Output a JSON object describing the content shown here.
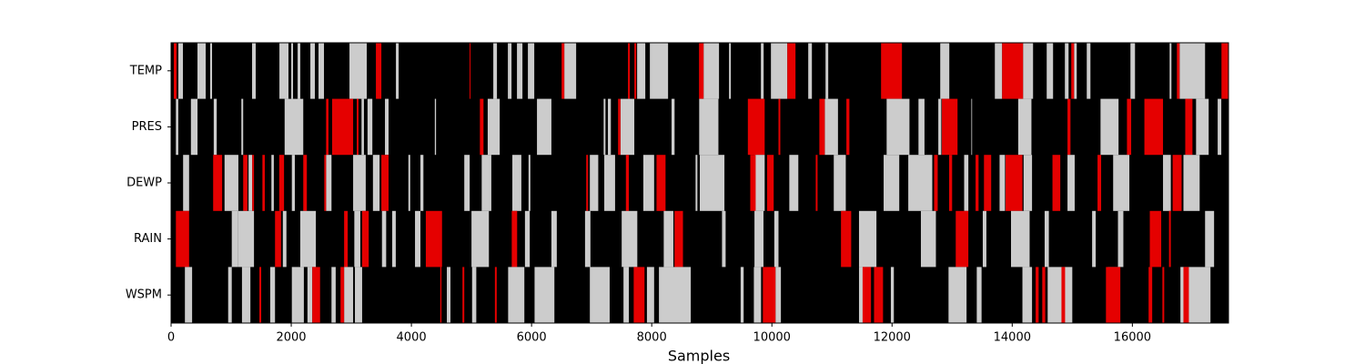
{
  "chart_data": {
    "type": "strip",
    "xlabel": "Samples",
    "xlim": [
      0,
      17600
    ],
    "xticks": [
      0,
      2000,
      4000,
      6000,
      8000,
      10000,
      12000,
      14000,
      16000
    ],
    "background": "#000000",
    "series": [
      {
        "name": "TEMP",
        "layers": [
          {
            "color": "#cccccc",
            "spans": [
              [
                121,
                197
              ],
              [
                439,
                576
              ],
              [
                651,
                682
              ],
              [
                1348,
                1409
              ],
              [
                1803,
                1954
              ],
              [
                2000,
                2030
              ],
              [
                2106,
                2151
              ],
              [
                2318,
                2394
              ],
              [
                2454,
                2545
              ],
              [
                2969,
                3257
              ],
              [
                3742,
                3788
              ],
              [
                5363,
                5424
              ],
              [
                5606,
                5666
              ],
              [
                5757,
                5848
              ],
              [
                5939,
                6045
              ],
              [
                6545,
                6742
              ],
              [
                7757,
                7893
              ],
              [
                7969,
                8272
              ],
              [
                8863,
                9120
              ],
              [
                9287,
                9317
              ],
              [
                9817,
                9863
              ],
              [
                9984,
                10257
              ],
              [
                10605,
                10666
              ],
              [
                10893,
                10938
              ],
              [
                12802,
                12953
              ],
              [
                13711,
                13832
              ],
              [
                14180,
                14347
              ],
              [
                14574,
                14680
              ],
              [
                14877,
                14938
              ],
              [
                15029,
                15074
              ],
              [
                15241,
                15302
              ],
              [
                15968,
                16044
              ],
              [
                16620,
                16650
              ],
              [
                16786,
                17210
              ]
            ]
          },
          {
            "color": "#e50000",
            "spans": [
              [
                45,
                91
              ],
              [
                3409,
                3500
              ],
              [
                4969,
                4984
              ],
              [
                6500,
                6545
              ],
              [
                7605,
                7636
              ],
              [
                7711,
                7742
              ],
              [
                8787,
                8863
              ],
              [
                10257,
                10393
              ],
              [
                11817,
                12165
              ],
              [
                13832,
                14180
              ],
              [
                14983,
                15029
              ],
              [
                16741,
                16786
              ],
              [
                17483,
                17600
              ]
            ]
          }
        ]
      },
      {
        "name": "PRES",
        "layers": [
          {
            "color": "#cccccc",
            "spans": [
              [
                80,
                120
              ],
              [
                330,
                440
              ],
              [
                710,
                760
              ],
              [
                1170,
                1200
              ],
              [
                1890,
                2200
              ],
              [
                3170,
                3210
              ],
              [
                3270,
                3350
              ],
              [
                3560,
                3620
              ],
              [
                4390,
                4410
              ],
              [
                5270,
                5470
              ],
              [
                6090,
                6330
              ],
              [
                7200,
                7230
              ],
              [
                7270,
                7320
              ],
              [
                7480,
                7710
              ],
              [
                8330,
                8380
              ],
              [
                8790,
                9110
              ],
              [
                10880,
                11100
              ],
              [
                11910,
                12290
              ],
              [
                12440,
                12540
              ],
              [
                12770,
                12820
              ],
              [
                13320,
                13330
              ],
              [
                14100,
                14320
              ],
              [
                15470,
                15770
              ],
              [
                17060,
                17270
              ],
              [
                17420,
                17480
              ]
            ]
          },
          {
            "color": "#e50000",
            "spans": [
              [
                2580,
                2620
              ],
              [
                2680,
                3030
              ],
              [
                3090,
                3120
              ],
              [
                5140,
                5200
              ],
              [
                7440,
                7480
              ],
              [
                9600,
                9880
              ],
              [
                10110,
                10140
              ],
              [
                10790,
                10880
              ],
              [
                11240,
                11290
              ],
              [
                12830,
                13090
              ],
              [
                14920,
                14970
              ],
              [
                15910,
                15980
              ],
              [
                16200,
                16510
              ],
              [
                16880,
                17000
              ]
            ]
          }
        ]
      },
      {
        "name": "DEWP",
        "layers": [
          {
            "color": "#cccccc",
            "spans": [
              [
                200,
                300
              ],
              [
                890,
                1120
              ],
              [
                1290,
                1350
              ],
              [
                1670,
                1710
              ],
              [
                2010,
                2060
              ],
              [
                2580,
                2670
              ],
              [
                3030,
                3240
              ],
              [
                3360,
                3470
              ],
              [
                3950,
                3980
              ],
              [
                4150,
                4200
              ],
              [
                4880,
                4970
              ],
              [
                5170,
                5330
              ],
              [
                5680,
                5830
              ],
              [
                5950,
                5980
              ],
              [
                6970,
                7110
              ],
              [
                7210,
                7390
              ],
              [
                7860,
                8040
              ],
              [
                8730,
                8760
              ],
              [
                8800,
                9210
              ],
              [
                9710,
                9880
              ],
              [
                10290,
                10440
              ],
              [
                11030,
                11230
              ],
              [
                11860,
                12120
              ],
              [
                12270,
                12670
              ],
              [
                13200,
                13270
              ],
              [
                13790,
                13880
              ],
              [
                14190,
                14330
              ],
              [
                14920,
                15040
              ],
              [
                15680,
                15950
              ],
              [
                16510,
                16640
              ],
              [
                16850,
                17120
              ]
            ]
          },
          {
            "color": "#e50000",
            "spans": [
              [
                700,
                850
              ],
              [
                1200,
                1270
              ],
              [
                1350,
                1380
              ],
              [
                1520,
                1560
              ],
              [
                1800,
                1880
              ],
              [
                2200,
                2260
              ],
              [
                2550,
                2580
              ],
              [
                3500,
                3620
              ],
              [
                6910,
                6940
              ],
              [
                7570,
                7620
              ],
              [
                8080,
                8230
              ],
              [
                9640,
                9730
              ],
              [
                9920,
                10030
              ],
              [
                10730,
                10760
              ],
              [
                12700,
                12760
              ],
              [
                12950,
                13000
              ],
              [
                13390,
                13440
              ],
              [
                13530,
                13650
              ],
              [
                13890,
                14170
              ],
              [
                14670,
                14800
              ],
              [
                15420,
                15480
              ],
              [
                16670,
                16820
              ]
            ]
          }
        ]
      },
      {
        "name": "RAIN",
        "layers": [
          {
            "color": "#cccccc",
            "spans": [
              [
                1010,
                1110
              ],
              [
                1110,
                1380
              ],
              [
                1860,
                1920
              ],
              [
                2150,
                2410
              ],
              [
                3050,
                3150
              ],
              [
                3510,
                3580
              ],
              [
                3680,
                3740
              ],
              [
                4060,
                4150
              ],
              [
                5000,
                5290
              ],
              [
                5890,
                5970
              ],
              [
                6330,
                6420
              ],
              [
                6890,
                6980
              ],
              [
                7500,
                7760
              ],
              [
                8200,
                8360
              ],
              [
                9170,
                9230
              ],
              [
                9710,
                9860
              ],
              [
                10040,
                10110
              ],
              [
                11450,
                11740
              ],
              [
                12480,
                12730
              ],
              [
                13510,
                13570
              ],
              [
                13980,
                14290
              ],
              [
                14540,
                14610
              ],
              [
                15330,
                15390
              ],
              [
                15760,
                15850
              ],
              [
                17210,
                17360
              ]
            ]
          },
          {
            "color": "#e50000",
            "spans": [
              [
                80,
                300
              ],
              [
                1730,
                1830
              ],
              [
                2880,
                2940
              ],
              [
                3180,
                3290
              ],
              [
                4240,
                4510
              ],
              [
                5670,
                5760
              ],
              [
                8380,
                8520
              ],
              [
                11150,
                11320
              ],
              [
                13060,
                13270
              ],
              [
                16290,
                16480
              ],
              [
                16610,
                16640
              ]
            ]
          }
        ]
      },
      {
        "name": "WSPM",
        "layers": [
          {
            "color": "#cccccc",
            "spans": [
              [
                230,
                350
              ],
              [
                950,
                1010
              ],
              [
                1180,
                1320
              ],
              [
                1650,
                1730
              ],
              [
                2010,
                2210
              ],
              [
                2270,
                2350
              ],
              [
                2670,
                2740
              ],
              [
                2880,
                3030
              ],
              [
                3060,
                3180
              ],
              [
                4590,
                4650
              ],
              [
                5010,
                5080
              ],
              [
                5610,
                5880
              ],
              [
                6050,
                6380
              ],
              [
                6970,
                7300
              ],
              [
                7530,
                7620
              ],
              [
                7920,
                8040
              ],
              [
                8120,
                8650
              ],
              [
                9480,
                9530
              ],
              [
                9700,
                9820
              ],
              [
                10060,
                10150
              ],
              [
                11450,
                11540
              ],
              [
                11980,
                12030
              ],
              [
                12940,
                13240
              ],
              [
                13410,
                13490
              ],
              [
                14170,
                14330
              ],
              [
                14590,
                15000
              ],
              [
                15590,
                15760
              ],
              [
                16800,
                16920
              ],
              [
                16920,
                17300
              ]
            ]
          },
          {
            "color": "#e50000",
            "spans": [
              [
                1470,
                1500
              ],
              [
                2350,
                2480
              ],
              [
                2820,
                2880
              ],
              [
                4480,
                4500
              ],
              [
                4850,
                4880
              ],
              [
                5390,
                5420
              ],
              [
                7700,
                7880
              ],
              [
                9850,
                10060
              ],
              [
                11510,
                11650
              ],
              [
                11700,
                11850
              ],
              [
                14390,
                14440
              ],
              [
                14500,
                14550
              ],
              [
                14820,
                14880
              ],
              [
                15560,
                15800
              ],
              [
                16270,
                16330
              ],
              [
                16500,
                16530
              ],
              [
                16850,
                16940
              ]
            ]
          }
        ]
      }
    ]
  }
}
